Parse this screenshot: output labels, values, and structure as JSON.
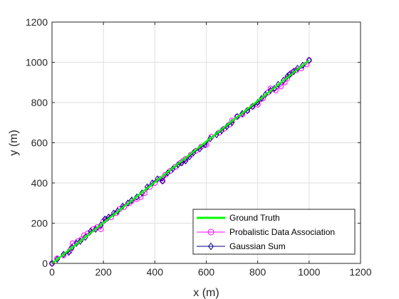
{
  "chart_data": {
    "type": "line",
    "title": "",
    "xlabel": "x (m)",
    "ylabel": "y (m)",
    "xlim": [
      0,
      1200
    ],
    "ylim": [
      0,
      1200
    ],
    "xticks": [
      0,
      200,
      400,
      600,
      800,
      1000,
      1200
    ],
    "yticks": [
      0,
      200,
      400,
      600,
      800,
      1000,
      1200
    ],
    "xtick_labels": [
      "0",
      "200",
      "400",
      "600",
      "800",
      "1000",
      "1200"
    ],
    "ytick_labels": [
      "0",
      "200",
      "400",
      "600",
      "800",
      "1000",
      "1200"
    ],
    "grid": true,
    "legend_position": "bottom-right",
    "series": [
      {
        "name": "Ground Truth",
        "color": "#00ff00",
        "marker": "none",
        "x": [
          0,
          1000
        ],
        "y": [
          0,
          1010
        ]
      },
      {
        "name": "Probalistic Data Association",
        "color": "#ff00ff",
        "marker": "circle",
        "x": [
          0,
          20,
          45,
          68,
          75,
          80,
          100,
          115,
          125,
          140,
          160,
          175,
          190,
          200,
          210,
          230,
          250,
          262,
          280,
          300,
          310,
          330,
          345,
          360,
          380,
          400,
          420,
          430,
          440,
          460,
          480,
          500,
          510,
          520,
          540,
          560,
          580,
          600,
          620,
          650,
          670,
          690,
          700,
          720,
          740,
          760,
          780,
          800,
          820,
          840,
          850,
          870,
          890,
          905,
          915,
          925,
          935,
          950,
          970,
          990,
          1000
        ],
        "y": [
          0,
          25,
          40,
          60,
          75,
          100,
          110,
          120,
          140,
          150,
          170,
          180,
          170,
          210,
          220,
          230,
          250,
          270,
          280,
          300,
          310,
          320,
          330,
          350,
          380,
          400,
          420,
          410,
          440,
          460,
          480,
          500,
          510,
          520,
          540,
          560,
          580,
          590,
          630,
          650,
          670,
          690,
          710,
          730,
          740,
          760,
          780,
          790,
          820,
          850,
          870,
          860,
          880,
          900,
          920,
          940,
          950,
          960,
          970,
          990,
          1010
        ]
      },
      {
        "name": "Gaussian Sum",
        "color": "#000080",
        "marker": "diamond",
        "x": [
          0,
          20,
          45,
          65,
          78,
          95,
          110,
          130,
          150,
          170,
          190,
          205,
          220,
          240,
          255,
          275,
          295,
          310,
          330,
          350,
          370,
          390,
          410,
          430,
          450,
          470,
          490,
          505,
          520,
          535,
          550,
          575,
          595,
          615,
          640,
          660,
          680,
          700,
          720,
          740,
          760,
          780,
          800,
          815,
          830,
          850,
          865,
          880,
          900,
          915,
          925,
          940,
          955,
          975,
          1000
        ],
        "y": [
          0,
          20,
          45,
          55,
          80,
          100,
          110,
          130,
          160,
          170,
          190,
          220,
          230,
          250,
          260,
          285,
          300,
          315,
          330,
          350,
          380,
          400,
          420,
          410,
          450,
          470,
          490,
          500,
          510,
          530,
          550,
          570,
          590,
          620,
          640,
          660,
          680,
          700,
          730,
          745,
          760,
          780,
          800,
          820,
          840,
          860,
          870,
          890,
          910,
          930,
          940,
          955,
          970,
          985,
          1010
        ]
      }
    ]
  }
}
